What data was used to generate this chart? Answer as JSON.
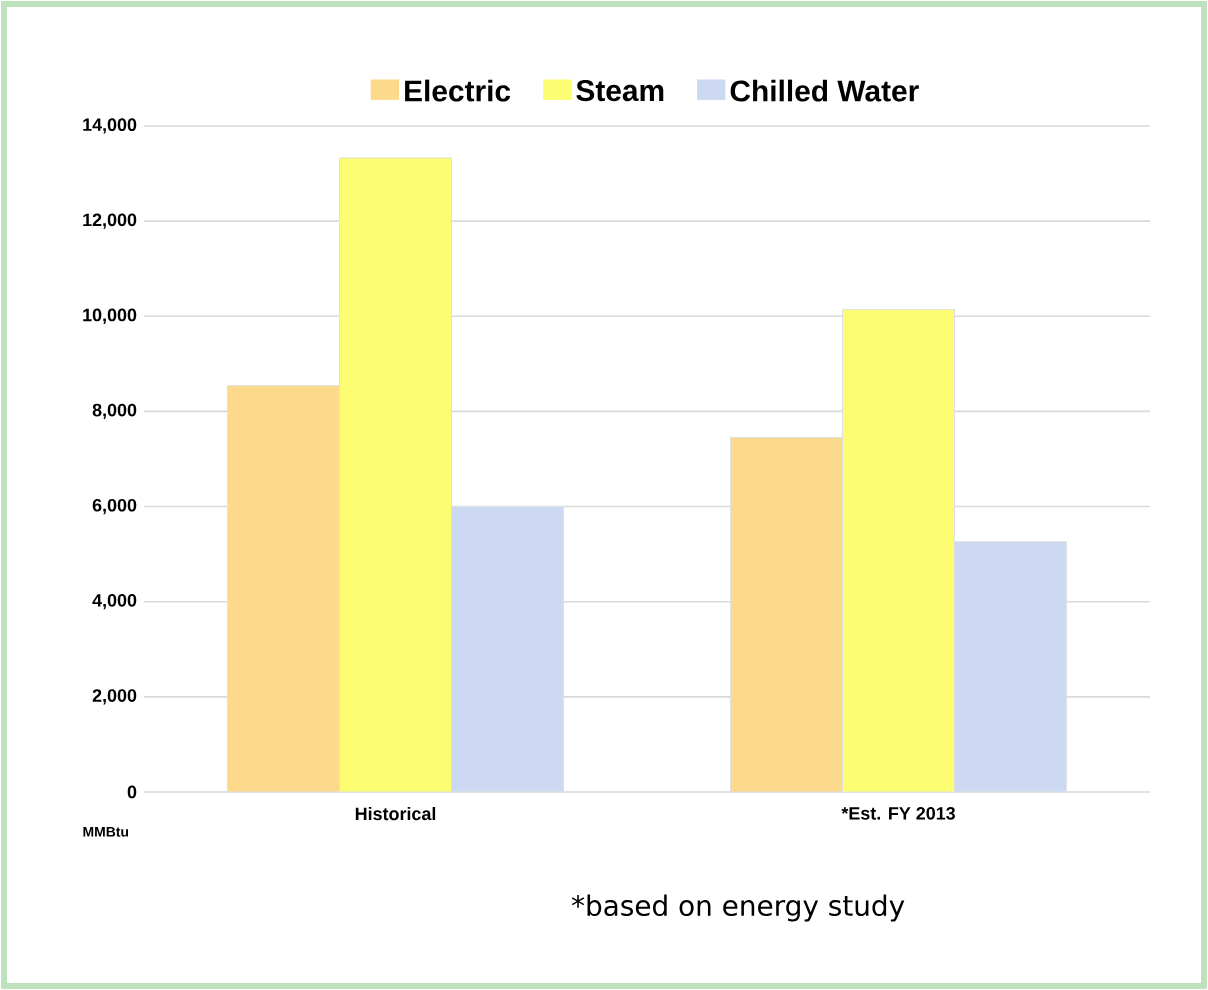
{
  "chart_data": {
    "type": "bar",
    "categories": [
      "Historical",
      "*Est. FY 2013"
    ],
    "series": [
      {
        "name": "Electric",
        "color": "#fdd98b",
        "values": [
          8540,
          7450
        ]
      },
      {
        "name": "Steam",
        "color": "#fdfd71",
        "values": [
          13330,
          10140
        ]
      },
      {
        "name": "Chilled Water",
        "color": "#cdd8f3",
        "values": [
          6000,
          5260
        ]
      }
    ],
    "ylabel": "MMBtu",
    "ylim": [
      0,
      14000
    ],
    "yticks": [
      {
        "value": 0,
        "label": "0"
      },
      {
        "value": 2000,
        "label": "2,000"
      },
      {
        "value": 4000,
        "label": "4,000"
      },
      {
        "value": 6000,
        "label": "6,000"
      },
      {
        "value": 8000,
        "label": "8,000"
      },
      {
        "value": 10000,
        "label": "10,000"
      },
      {
        "value": 12000,
        "label": "12,000"
      },
      {
        "value": 14000,
        "label": "14,000"
      }
    ],
    "grid": "y",
    "legend": "top",
    "annotations": [
      "*based on energy study"
    ]
  }
}
